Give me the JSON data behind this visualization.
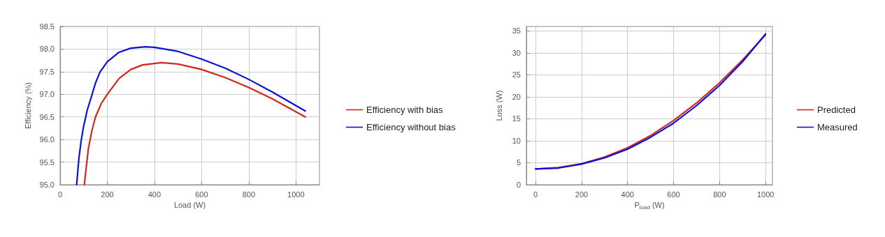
{
  "chart_data": [
    {
      "type": "line",
      "xlabel": "Load (W)",
      "ylabel": "Efficiency (%)",
      "xlim": [
        0,
        1100
      ],
      "xticks": [
        0,
        200,
        400,
        600,
        800,
        1000
      ],
      "ylim": [
        95,
        98.5
      ],
      "yticks": [
        {
          "value": 95,
          "label": "95.0"
        },
        {
          "value": 95.5,
          "label": "95.5"
        },
        {
          "value": 96,
          "label": "96.0"
        },
        {
          "value": 96.5,
          "label": "96.5"
        },
        {
          "value": 97,
          "label": "97.0"
        },
        {
          "value": 97.5,
          "label": "97.5"
        },
        {
          "value": 98,
          "label": "98.0"
        },
        {
          "value": 98.5,
          "label": "98.5"
        }
      ],
      "grid": true,
      "legend": "right",
      "marker": "none",
      "line_style": "solid",
      "series": [
        {
          "name": "Efficiency with bias",
          "color": "#d0271d",
          "x": [
            103,
            110,
            120,
            135,
            150,
            175,
            200,
            250,
            300,
            350,
            430,
            500,
            600,
            700,
            800,
            900,
            1040
          ],
          "values": [
            95.0,
            95.35,
            95.8,
            96.2,
            96.5,
            96.8,
            97.0,
            97.35,
            97.55,
            97.65,
            97.7,
            97.67,
            97.55,
            97.37,
            97.15,
            96.9,
            96.5
          ]
        },
        {
          "name": "Efficiency without bias",
          "color": "#0a10d8",
          "x": [
            70,
            75,
            80,
            90,
            100,
            115,
            130,
            150,
            170,
            200,
            250,
            300,
            360,
            400,
            500,
            600,
            700,
            800,
            900,
            1040
          ],
          "values": [
            95.0,
            95.3,
            95.6,
            96.0,
            96.3,
            96.65,
            96.9,
            97.25,
            97.5,
            97.72,
            97.93,
            98.02,
            98.05,
            98.04,
            97.95,
            97.78,
            97.58,
            97.33,
            97.05,
            96.63
          ]
        }
      ]
    },
    {
      "type": "line",
      "xlabel": "P$_{load}$ (W)",
      "ylabel": "Loss (W)",
      "xlim": [
        -40,
        1030
      ],
      "xticks": [
        0,
        200,
        400,
        600,
        800,
        1000
      ],
      "ylim": [
        0,
        36
      ],
      "yticks": [
        0,
        5,
        10,
        15,
        20,
        25,
        30,
        35
      ],
      "grid": true,
      "legend": "right",
      "marker": "none",
      "line_style": "solid",
      "series": [
        {
          "name": "Predicted",
          "color": "#d0271d",
          "x": [
            0,
            100,
            200,
            300,
            400,
            500,
            600,
            700,
            800,
            900,
            1000
          ],
          "values": [
            3.6,
            3.9,
            4.8,
            6.3,
            8.4,
            11.2,
            14.6,
            18.6,
            23.2,
            28.4,
            34.1
          ]
        },
        {
          "name": "Measured",
          "color": "#0a10d8",
          "x": [
            0,
            100,
            200,
            300,
            400,
            500,
            600,
            700,
            800,
            900,
            1000
          ],
          "values": [
            3.6,
            3.8,
            4.7,
            6.1,
            8.1,
            10.8,
            14.0,
            18.0,
            22.6,
            28.0,
            34.3
          ]
        }
      ]
    }
  ]
}
